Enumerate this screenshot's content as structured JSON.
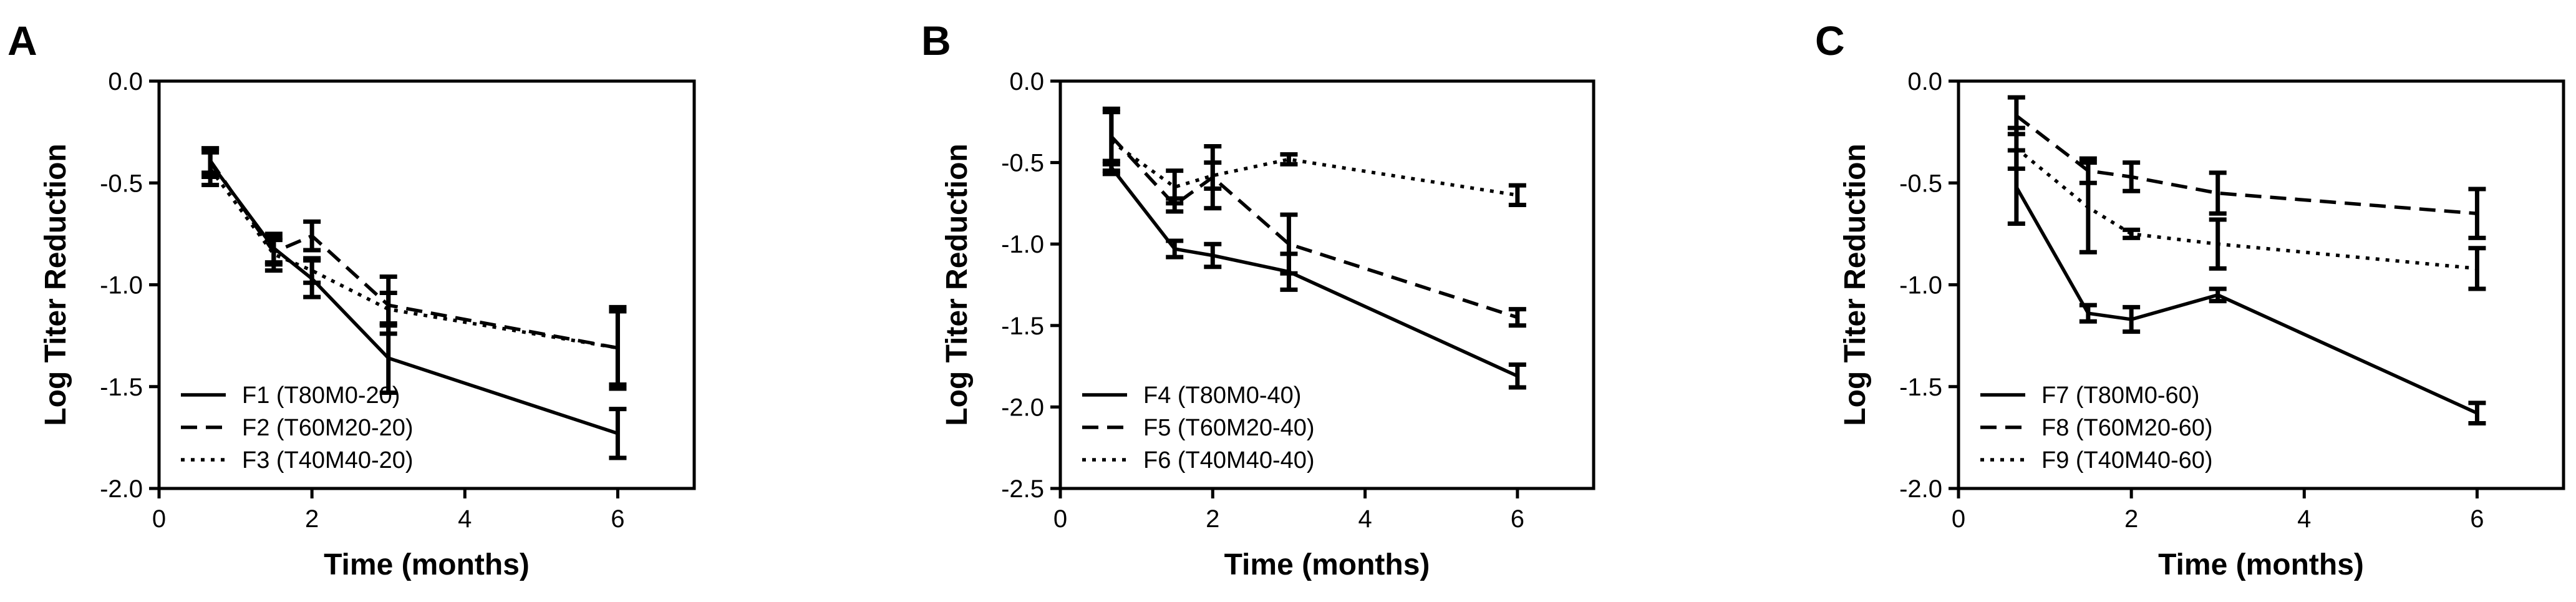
{
  "chart_data": [
    {
      "type": "line",
      "panel": "A",
      "xlabel": "Time (months)",
      "ylabel": "Log Titer Reduction",
      "xlim": [
        0,
        7
      ],
      "ylim": [
        -2.0,
        0.0
      ],
      "xticks": [
        0,
        2,
        4,
        6
      ],
      "yticks": [
        0.0,
        -0.5,
        -1.0,
        -1.5,
        -2.0
      ],
      "xtick_labels": [
        "0",
        "2",
        "4",
        "6"
      ],
      "ytick_labels": [
        "0.0",
        "-0.5",
        "-1.0",
        "-1.5",
        "-2.0"
      ],
      "legend_position": "bottom-left",
      "series": [
        {
          "name": "F1 (T80M0-20)",
          "dash": "solid",
          "x": [
            0.67,
            1.5,
            2,
            3,
            6
          ],
          "y": [
            -0.4,
            -0.82,
            -0.97,
            -1.36,
            -1.73
          ],
          "err": [
            0.07,
            0.07,
            0.09,
            0.17,
            0.12
          ]
        },
        {
          "name": "F2 (T60M20-20)",
          "dash": "dashed",
          "x": [
            0.67,
            1.5,
            2,
            3,
            6
          ],
          "y": [
            -0.39,
            -0.84,
            -0.76,
            -1.1,
            -1.31
          ],
          "err": [
            0.06,
            0.06,
            0.07,
            0.14,
            0.2
          ]
        },
        {
          "name": "F3 (T40M40-20)",
          "dash": "dotted",
          "x": [
            0.67,
            1.5,
            2,
            3,
            6
          ],
          "y": [
            -0.43,
            -0.85,
            -0.93,
            -1.12,
            -1.31
          ],
          "err": [
            0.08,
            0.08,
            0.06,
            0.08,
            0.18
          ]
        }
      ]
    },
    {
      "type": "line",
      "panel": "B",
      "xlabel": "Time (months)",
      "ylabel": "Log Titer Reduction",
      "xlim": [
        0,
        7
      ],
      "ylim": [
        -2.5,
        0.0
      ],
      "xticks": [
        0,
        2,
        4,
        6
      ],
      "yticks": [
        0.0,
        -0.5,
        -1.0,
        -1.5,
        -2.0,
        -2.5
      ],
      "xtick_labels": [
        "0",
        "2",
        "4",
        "6"
      ],
      "ytick_labels": [
        "0.0",
        "-0.5",
        "-1.0",
        "-1.5",
        "-2.0",
        "-2.5"
      ],
      "legend_position": "bottom-left",
      "series": [
        {
          "name": "F4 (T80M0-40)",
          "dash": "solid",
          "x": [
            0.67,
            1.5,
            2,
            3,
            6
          ],
          "y": [
            -0.53,
            -1.03,
            -1.07,
            -1.17,
            -1.81
          ],
          "err": [
            0.04,
            0.05,
            0.07,
            0.11,
            0.07
          ]
        },
        {
          "name": "F5 (T60M20-40)",
          "dash": "dashed",
          "x": [
            0.67,
            1.5,
            2,
            3,
            6
          ],
          "y": [
            -0.34,
            -0.76,
            -0.59,
            -1.0,
            -1.45
          ],
          "err": [
            0.17,
            0.04,
            0.19,
            0.18,
            0.05
          ]
        },
        {
          "name": "F6 (T40M40-40)",
          "dash": "dotted",
          "x": [
            0.67,
            1.5,
            2,
            3,
            6
          ],
          "y": [
            -0.37,
            -0.65,
            -0.58,
            -0.48,
            -0.7
          ],
          "err": [
            0.18,
            0.1,
            0.08,
            0.03,
            0.06
          ]
        }
      ]
    },
    {
      "type": "line",
      "panel": "C",
      "xlabel": "Time (months)",
      "ylabel": "Log Titer Reduction",
      "xlim": [
        0,
        7
      ],
      "ylim": [
        -2.0,
        0.0
      ],
      "xticks": [
        0,
        2,
        4,
        6
      ],
      "yticks": [
        0.0,
        -0.5,
        -1.0,
        -1.5,
        -2.0
      ],
      "xtick_labels": [
        "0",
        "2",
        "4",
        "6"
      ],
      "ytick_labels": [
        "0.0",
        "-0.5",
        "-1.0",
        "-1.5",
        "-2.0"
      ],
      "legend_position": "bottom-left",
      "series": [
        {
          "name": "F7 (T80M0-60)",
          "dash": "solid",
          "x": [
            0.67,
            1.5,
            2,
            3,
            6
          ],
          "y": [
            -0.52,
            -1.14,
            -1.17,
            -1.05,
            -1.63
          ],
          "err": [
            0.18,
            0.04,
            0.06,
            0.03,
            0.05
          ]
        },
        {
          "name": "F8 (T60M20-60)",
          "dash": "dashed",
          "x": [
            0.67,
            1.5,
            2,
            3,
            6
          ],
          "y": [
            -0.17,
            -0.44,
            -0.47,
            -0.55,
            -0.65
          ],
          "err": [
            0.09,
            0.06,
            0.07,
            0.1,
            0.12
          ]
        },
        {
          "name": "F9 (T40M40-60)",
          "dash": "dotted",
          "x": [
            0.67,
            1.5,
            2,
            3,
            6
          ],
          "y": [
            -0.33,
            -0.62,
            -0.75,
            -0.8,
            -0.92
          ],
          "err": [
            0.1,
            0.22,
            0.02,
            0.12,
            0.1
          ]
        }
      ]
    }
  ]
}
